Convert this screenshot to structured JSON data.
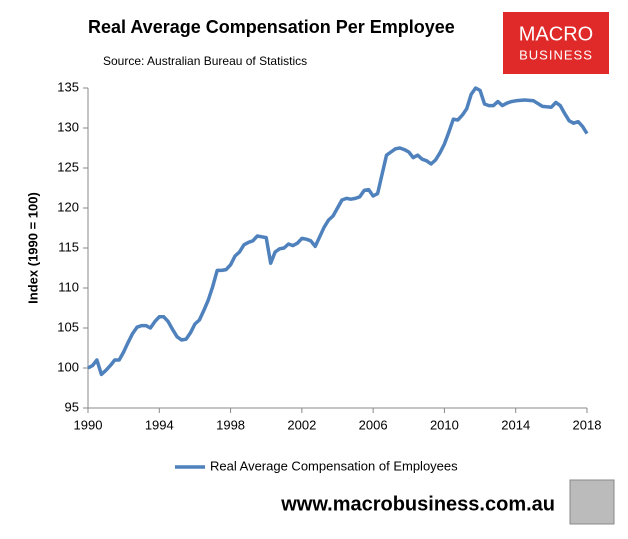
{
  "chart_data": {
    "type": "line",
    "title": "Real Average Compensation Per Employee",
    "subtitle": "Source: Australian Bureau of Statistics",
    "y_label": "Index (1990 = 100)",
    "x": [
      1990.0,
      1990.25,
      1990.5,
      1990.75,
      1991.0,
      1991.25,
      1991.5,
      1991.75,
      1992.0,
      1992.25,
      1992.5,
      1992.75,
      1993.0,
      1993.25,
      1993.5,
      1993.75,
      1994.0,
      1994.25,
      1994.5,
      1994.75,
      1995.0,
      1995.25,
      1995.5,
      1995.75,
      1996.0,
      1996.25,
      1996.5,
      1996.75,
      1997.0,
      1997.25,
      1997.5,
      1997.75,
      1998.0,
      1998.25,
      1998.5,
      1998.75,
      1999.0,
      1999.25,
      1999.5,
      1999.75,
      2000.0,
      2000.25,
      2000.5,
      2000.75,
      2001.0,
      2001.25,
      2001.5,
      2001.75,
      2002.0,
      2002.25,
      2002.5,
      2002.75,
      2003.0,
      2003.25,
      2003.5,
      2003.75,
      2004.0,
      2004.25,
      2004.5,
      2004.75,
      2005.0,
      2005.25,
      2005.5,
      2005.75,
      2006.0,
      2006.25,
      2006.5,
      2006.75,
      2007.0,
      2007.25,
      2007.5,
      2007.75,
      2008.0,
      2008.25,
      2008.5,
      2008.75,
      2009.0,
      2009.25,
      2009.5,
      2009.75,
      2010.0,
      2010.25,
      2010.5,
      2010.75,
      2011.0,
      2011.25,
      2011.5,
      2011.75,
      2012.0,
      2012.25,
      2012.5,
      2012.75,
      2013.0,
      2013.25,
      2013.5,
      2013.75,
      2014.0,
      2014.5,
      2015.0,
      2015.5,
      2016.0,
      2016.25,
      2016.5,
      2016.75,
      2017.0,
      2017.25,
      2017.5,
      2017.75,
      2018.0
    ],
    "series": [
      {
        "name": "Real Average Compensation of Employees",
        "color": "#4f81bd",
        "values": [
          100.0,
          100.3,
          101.0,
          99.2,
          99.7,
          100.3,
          101.0,
          101.0,
          102.0,
          103.2,
          104.3,
          105.1,
          105.3,
          105.3,
          105.0,
          105.8,
          106.4,
          106.4,
          105.8,
          104.8,
          103.9,
          103.5,
          103.6,
          104.4,
          105.5,
          106.0,
          107.2,
          108.5,
          110.2,
          112.2,
          112.2,
          112.3,
          112.9,
          114.0,
          114.5,
          115.4,
          115.7,
          115.9,
          116.5,
          116.4,
          116.3,
          113.1,
          114.5,
          114.9,
          115.0,
          115.5,
          115.3,
          115.6,
          116.2,
          116.1,
          115.9,
          115.2,
          116.4,
          117.6,
          118.5,
          119.0,
          120.0,
          121.0,
          121.2,
          121.1,
          121.2,
          121.4,
          122.2,
          122.3,
          121.5,
          121.8,
          124.2,
          126.6,
          127.0,
          127.4,
          127.5,
          127.3,
          127.0,
          126.3,
          126.6,
          126.1,
          125.9,
          125.5,
          126.0,
          126.9,
          128.0,
          129.5,
          131.1,
          131.0,
          131.6,
          132.4,
          134.2,
          135.0,
          134.7,
          133.0,
          132.8,
          132.8,
          133.3,
          132.8,
          133.1,
          133.3,
          133.4,
          133.5,
          133.4,
          132.7,
          132.6,
          133.2,
          132.8,
          131.8,
          130.9,
          130.6,
          130.8,
          130.2,
          129.3
        ]
      }
    ],
    "xlim": [
      1990,
      2018
    ],
    "xticks": [
      1990,
      1994,
      1998,
      2002,
      2006,
      2010,
      2014,
      2018
    ],
    "ylim": [
      95,
      135
    ],
    "yticks": [
      95,
      100,
      105,
      110,
      115,
      120,
      125,
      130,
      135
    ],
    "grid": false,
    "legend": "bottom"
  },
  "logo": {
    "line1": "MACRO",
    "line2": "BUSINESS"
  },
  "website": "www.macrobusiness.com.au"
}
